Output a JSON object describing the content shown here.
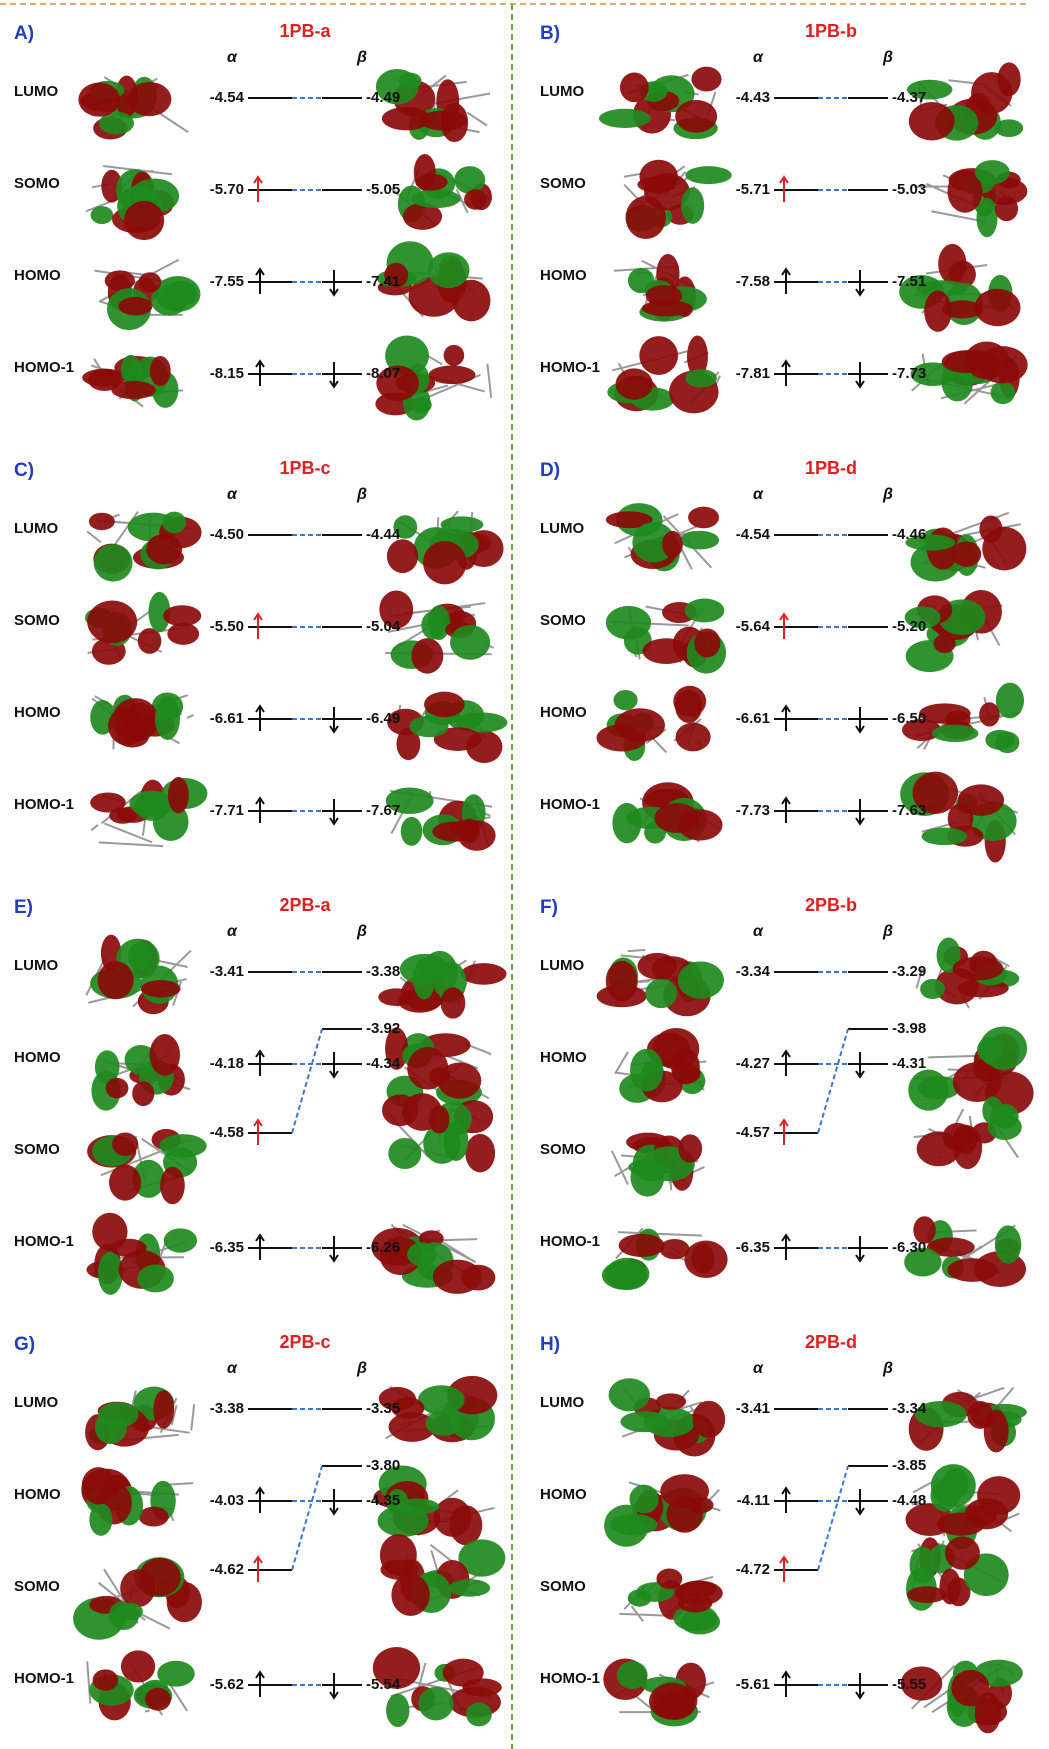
{
  "panels": [
    {
      "letter": "A)",
      "title": "1PB-a",
      "alpha": "α",
      "beta": "β",
      "levels": [
        {
          "label": "LUMO",
          "alpha": "-4.54",
          "beta": "-4.49"
        },
        {
          "label": "SOMO",
          "alpha": "-5.70",
          "beta": "-5.05"
        },
        {
          "label": "HOMO",
          "alpha": "-7.55",
          "beta": "-7.41"
        },
        {
          "label": "HOMO-1",
          "alpha": "-8.15",
          "beta": "-8.07"
        }
      ]
    },
    {
      "letter": "B)",
      "title": "1PB-b",
      "alpha": "α",
      "beta": "β",
      "levels": [
        {
          "label": "LUMO",
          "alpha": "-4.43",
          "beta": "-4.37"
        },
        {
          "label": "SOMO",
          "alpha": "-5.71",
          "beta": "-5.03"
        },
        {
          "label": "HOMO",
          "alpha": "-7.58",
          "beta": "-7.51"
        },
        {
          "label": "HOMO-1",
          "alpha": "-7.81",
          "beta": "-7.73"
        }
      ]
    },
    {
      "letter": "C)",
      "title": "1PB-c",
      "alpha": "α",
      "beta": "β",
      "levels": [
        {
          "label": "LUMO",
          "alpha": "-4.50",
          "beta": "-4.44"
        },
        {
          "label": "SOMO",
          "alpha": "-5.50",
          "beta": "-5.04"
        },
        {
          "label": "HOMO",
          "alpha": "-6.61",
          "beta": "-6.49"
        },
        {
          "label": "HOMO-1",
          "alpha": "-7.71",
          "beta": "-7.67"
        }
      ]
    },
    {
      "letter": "D)",
      "title": "1PB-d",
      "alpha": "α",
      "beta": "β",
      "levels": [
        {
          "label": "LUMO",
          "alpha": "-4.54",
          "beta": "-4.46"
        },
        {
          "label": "SOMO",
          "alpha": "-5.64",
          "beta": "-5.20"
        },
        {
          "label": "HOMO",
          "alpha": "-6.61",
          "beta": "-6.50"
        },
        {
          "label": "HOMO-1",
          "alpha": "-7.73",
          "beta": "-7.63"
        }
      ]
    },
    {
      "letter": "E)",
      "title": "2PB-a",
      "alpha": "α",
      "beta": "β",
      "levels": [
        {
          "label": "LUMO",
          "alpha": "-3.41",
          "beta": "-3.38"
        },
        {
          "label": "HOMO",
          "alpha": "-4.18",
          "beta": "-4.34"
        },
        {
          "label": "SOMO",
          "alpha": "-4.58",
          "beta": "-3.92"
        },
        {
          "label": "HOMO-1",
          "alpha": "-6.35",
          "beta": "-6.26"
        }
      ]
    },
    {
      "letter": "F)",
      "title": "2PB-b",
      "alpha": "α",
      "beta": "β",
      "levels": [
        {
          "label": "LUMO",
          "alpha": "-3.34",
          "beta": "-3.29"
        },
        {
          "label": "HOMO",
          "alpha": "-4.27",
          "beta": "-4.31"
        },
        {
          "label": "SOMO",
          "alpha": "-4.57",
          "beta": "-3.98"
        },
        {
          "label": "HOMO-1",
          "alpha": "-6.35",
          "beta": "-6.30"
        }
      ]
    },
    {
      "letter": "G)",
      "title": "2PB-c",
      "alpha": "α",
      "beta": "β",
      "levels": [
        {
          "label": "LUMO",
          "alpha": "-3.38",
          "beta": "-3.35"
        },
        {
          "label": "HOMO",
          "alpha": "-4.03",
          "beta": "-4.35"
        },
        {
          "label": "SOMO",
          "alpha": "-4.62",
          "beta": "-3.80"
        },
        {
          "label": "HOMO-1",
          "alpha": "-5.62",
          "beta": "-5.54"
        }
      ]
    },
    {
      "letter": "H)",
      "title": "2PB-d",
      "alpha": "α",
      "beta": "β",
      "levels": [
        {
          "label": "LUMO",
          "alpha": "-3.41",
          "beta": "-3.34"
        },
        {
          "label": "HOMO",
          "alpha": "-4.11",
          "beta": "-4.48"
        },
        {
          "label": "SOMO",
          "alpha": "-4.72",
          "beta": "-3.85"
        },
        {
          "label": "HOMO-1",
          "alpha": "-5.61",
          "beta": "-5.55"
        }
      ]
    }
  ]
}
